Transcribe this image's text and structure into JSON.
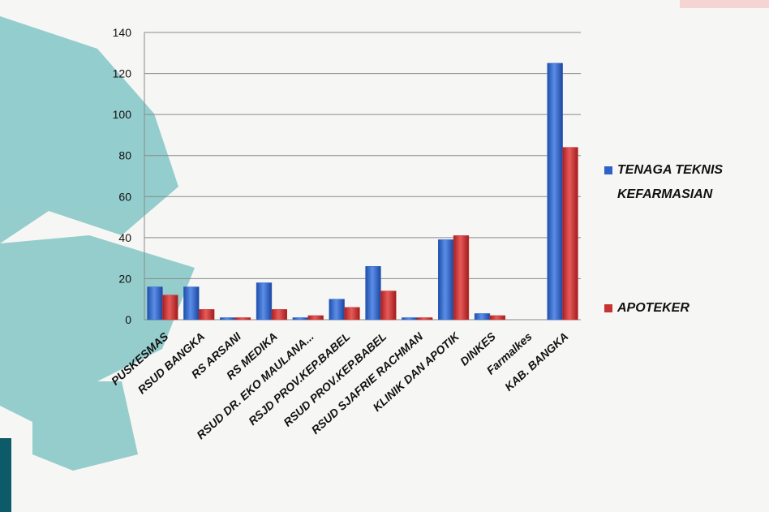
{
  "chart_data": {
    "type": "bar",
    "categories": [
      "PUSKESMAS",
      "RSUD BANGKA",
      "RS ARSANI",
      "RS MEDIKA",
      "RSUD DR. EKO MAULANA...",
      "RSJD PROV.KEP.BABEL",
      "RSUD PROV.KEP.BABEL",
      "RSUD SJAFRIE RACHMAN",
      "KLINIK DAN APOTIK",
      "DINKES",
      "Farmalkes",
      "KAB. BANGKA"
    ],
    "series": [
      {
        "name": "TENAGA TEKNIS KEFARMASIAN",
        "color": "#2f62c8",
        "values": [
          16,
          16,
          1,
          18,
          1,
          10,
          26,
          1,
          39,
          3,
          0,
          125
        ]
      },
      {
        "name": "APOTEKER",
        "color": "#c83232",
        "values": [
          12,
          5,
          1,
          5,
          2,
          6,
          14,
          1,
          41,
          2,
          0,
          84
        ]
      }
    ],
    "ylim": [
      0,
      140
    ],
    "yticks": [
      0,
      20,
      40,
      60,
      80,
      100,
      120,
      140
    ],
    "grid": true,
    "legend": "right"
  }
}
